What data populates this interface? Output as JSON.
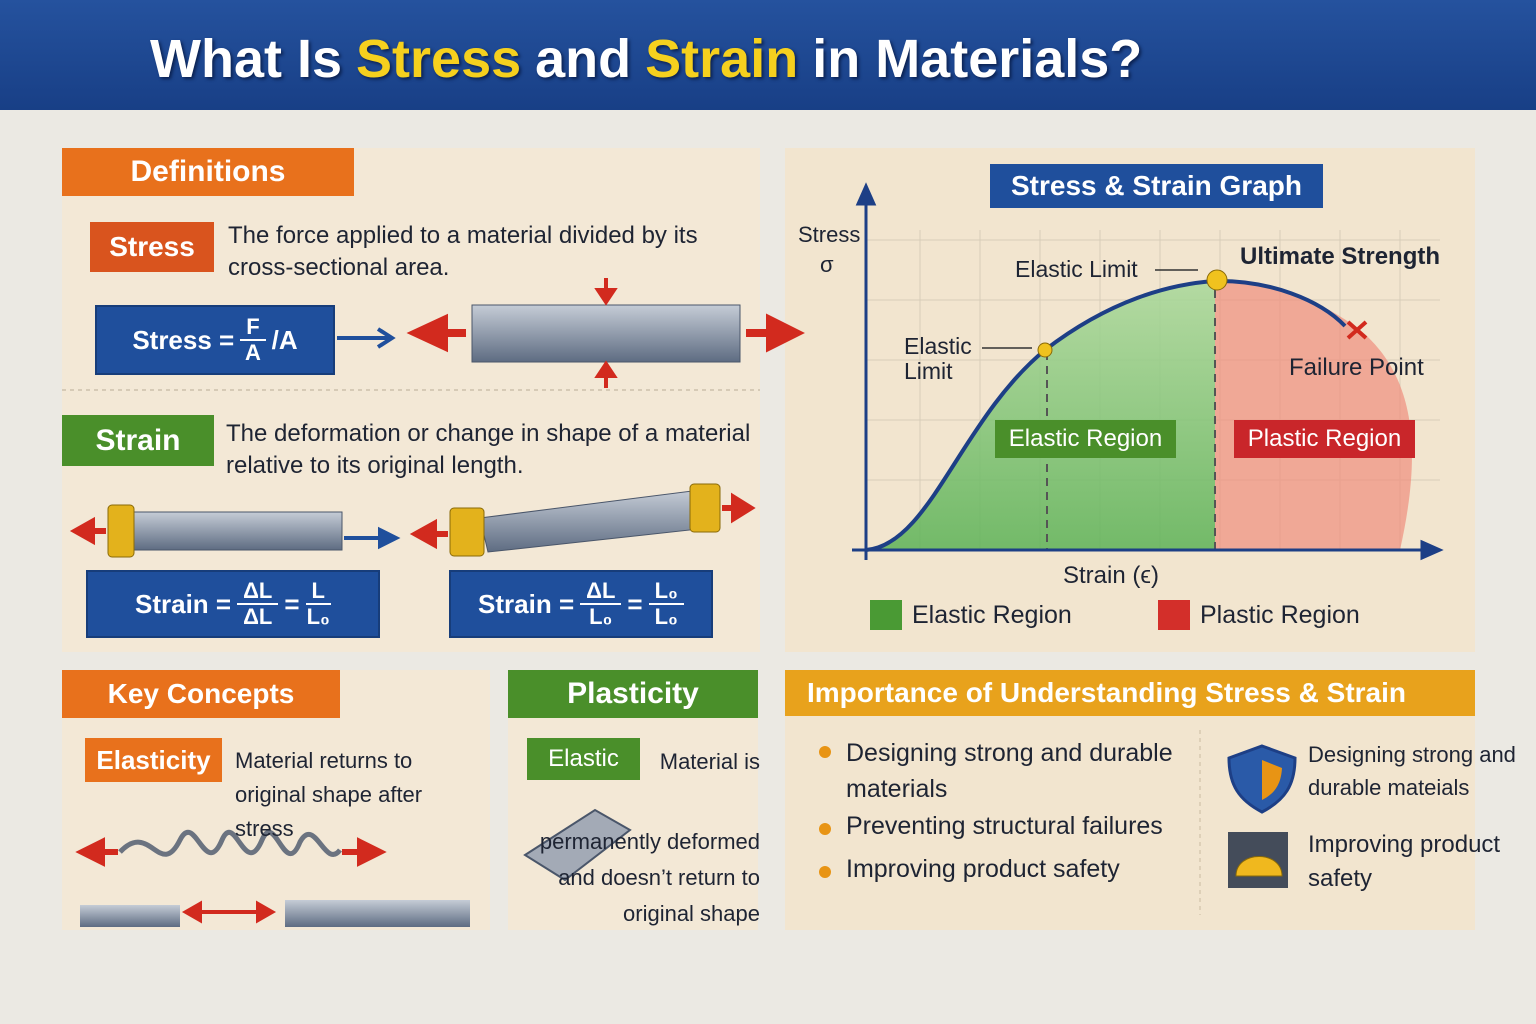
{
  "header": {
    "title": [
      "What Is",
      "Stress",
      "and",
      "Strain",
      "in Materials?"
    ]
  },
  "definitions": {
    "heading": "Definitions",
    "stress": {
      "label": "Stress",
      "text": "The force applied to a material divided by its cross-sectional area.",
      "formula": {
        "lhs": "Stress =",
        "numerator": "F",
        "denominator": "A",
        "suffix": "/A"
      }
    },
    "strain": {
      "label": "Strain",
      "text": "The deformation or change in shape of a material relative to its original length.",
      "formulas": [
        {
          "lhs": "Strain =",
          "num1": "ΔL",
          "den1": "ΔL",
          "eq": "=",
          "num2": "L",
          "den2": "L₀"
        },
        {
          "lhs": "Strain =",
          "num1": "ΔL",
          "den1": "L₀",
          "eq": "=",
          "num2": "L₀",
          "den2": "L₀"
        }
      ]
    }
  },
  "graph": {
    "title": "Stress & Strain Graph",
    "y_label": "Stress",
    "y_symbol": "σ",
    "x_label": "Strain (ϵ)",
    "annotations": {
      "elastic_limit_top": "Elastic Limit",
      "ultimate_strength": "Ultimate Strength",
      "elastic_limit_left": "Elastic Limit",
      "failure_point": "Failure Point",
      "elastic_region": "Elastic Region",
      "plastic_region": "Plastic Region"
    },
    "legend": [
      "Elastic Region",
      "Plastic Region"
    ]
  },
  "key_concepts": {
    "heading": "Key Concepts",
    "label": "Elasticity",
    "text": "Material returns to original shape after stress"
  },
  "plasticity": {
    "heading": "Plasticity",
    "label": "Elastic",
    "text": "Material is permanently deformed and doesn’t return to original shape"
  },
  "importance": {
    "heading": "Importance of Understanding Stress & Strain",
    "bullets": [
      "Designing strong and durable materials",
      "Preventing structural failures",
      "Improving product safety"
    ],
    "icons": [
      "Designing strong and durable mateials",
      "Improving product safety"
    ]
  }
}
